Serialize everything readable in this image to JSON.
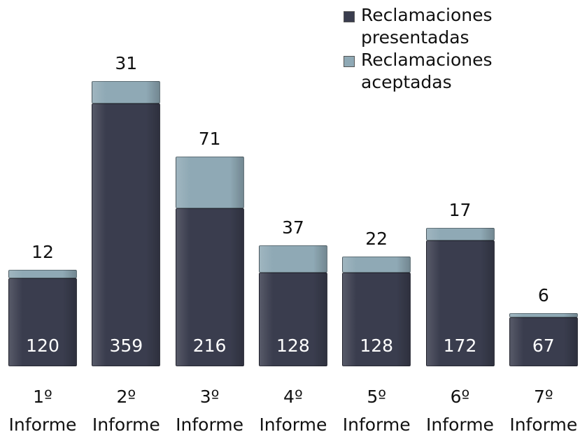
{
  "chart_data": {
    "type": "stacked_bar",
    "categories": [
      "1º Informe",
      "2º Informe",
      "3º Informe",
      "4º Informe",
      "5º Informe",
      "6º Informe",
      "7º Informe"
    ],
    "series": [
      {
        "name": "Reclamaciones presentadas",
        "color": "#3a3d4e",
        "values": [
          120,
          359,
          216,
          128,
          128,
          172,
          67
        ]
      },
      {
        "name": "Reclamaciones aceptadas",
        "color": "#8fa9b5",
        "values": [
          12,
          31,
          71,
          37,
          22,
          17,
          6
        ]
      }
    ],
    "legend": "top-right"
  }
}
